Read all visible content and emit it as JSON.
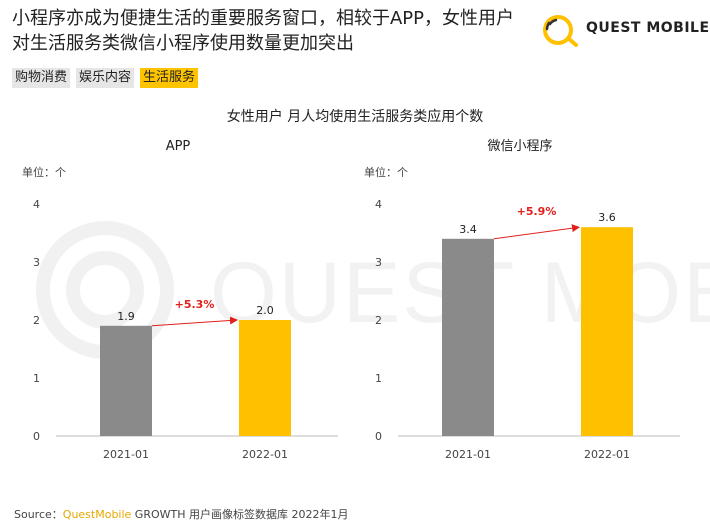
{
  "headline": "小程序亦成为便捷生活的重要服务窗口，相较于APP，女性用户对生活服务类微信小程序使用数量更加突出",
  "logo": {
    "text": "QUEST MOBILE",
    "watermark": "QUEST MOBILE"
  },
  "tabs": [
    {
      "label": "购物消费",
      "active": false
    },
    {
      "label": "娱乐内容",
      "active": false
    },
    {
      "label": "生活服务",
      "active": true
    }
  ],
  "colors": {
    "gray_bar": "#8a8a8a",
    "yellow_bar": "#ffc000",
    "accent_red": "#e0201c",
    "tab_active": "#ffc400"
  },
  "chart_title": "女性用户 月人均使用生活服务类应用个数",
  "chart_data": [
    {
      "type": "bar",
      "title": "APP",
      "unit_label": "单位：个",
      "categories": [
        "2021-01",
        "2022-01"
      ],
      "values": [
        1.9,
        2.0
      ],
      "value_labels": [
        "1.9",
        "2.0"
      ],
      "bar_colors": [
        "#8a8a8a",
        "#ffc000"
      ],
      "ylim": [
        0,
        4
      ],
      "yticks": [
        "0",
        "1",
        "2",
        "3",
        "4"
      ],
      "growth_label": "+5.3%"
    },
    {
      "type": "bar",
      "title": "微信小程序",
      "unit_label": "单位：个",
      "categories": [
        "2021-01",
        "2022-01"
      ],
      "values": [
        3.4,
        3.6
      ],
      "value_labels": [
        "3.4",
        "3.6"
      ],
      "bar_colors": [
        "#8a8a8a",
        "#ffc000"
      ],
      "ylim": [
        0,
        4
      ],
      "yticks": [
        "0",
        "1",
        "2",
        "3",
        "4"
      ],
      "growth_label": "+5.9%"
    }
  ],
  "source": {
    "prefix": "Source：",
    "brand": "QuestMobile",
    "rest": " GROWTH 用户画像标签数据库 2022年1月"
  }
}
